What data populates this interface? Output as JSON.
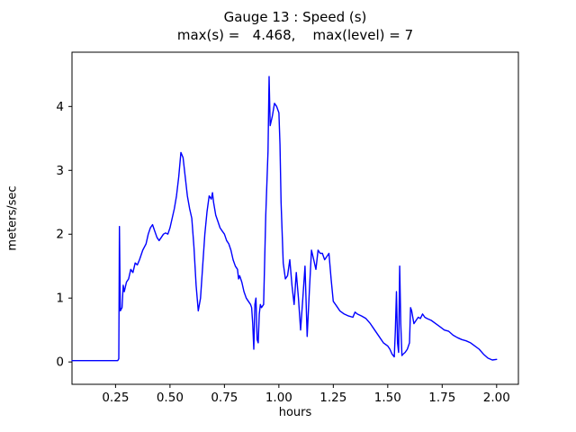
{
  "chart_data": {
    "type": "line",
    "title": "Gauge 13 : Speed (s)",
    "subtitle": "max(s) =   4.468,    max(level) = 7",
    "xlabel": "hours",
    "ylabel": "meters/sec",
    "max_s": 4.468,
    "max_level": 7,
    "line_color": "#0000ff",
    "axis_color": "#000000",
    "xlim": [
      0.05,
      2.1
    ],
    "ylim": [
      -0.35,
      4.85
    ],
    "xtick_values": [
      0.25,
      0.5,
      0.75,
      1.0,
      1.25,
      1.5,
      1.75,
      2.0
    ],
    "xtick_labels": [
      "0.25",
      "0.50",
      "0.75",
      "1.00",
      "1.25",
      "1.50",
      "1.75",
      "2.00"
    ],
    "ytick_values": [
      0,
      1,
      2,
      3,
      4
    ],
    "ytick_labels": [
      "0",
      "1",
      "2",
      "3",
      "4"
    ],
    "grid": false,
    "legend": null,
    "series": [
      {
        "name": "Speed (s)",
        "points": [
          [
            0.05,
            0.02
          ],
          [
            0.1,
            0.02
          ],
          [
            0.15,
            0.02
          ],
          [
            0.2,
            0.02
          ],
          [
            0.26,
            0.02
          ],
          [
            0.265,
            0.05
          ],
          [
            0.268,
            2.12
          ],
          [
            0.272,
            0.8
          ],
          [
            0.28,
            0.85
          ],
          [
            0.285,
            1.2
          ],
          [
            0.29,
            1.1
          ],
          [
            0.3,
            1.25
          ],
          [
            0.31,
            1.3
          ],
          [
            0.32,
            1.45
          ],
          [
            0.33,
            1.4
          ],
          [
            0.34,
            1.55
          ],
          [
            0.35,
            1.52
          ],
          [
            0.36,
            1.6
          ],
          [
            0.375,
            1.75
          ],
          [
            0.39,
            1.85
          ],
          [
            0.4,
            2.0
          ],
          [
            0.41,
            2.1
          ],
          [
            0.42,
            2.15
          ],
          [
            0.43,
            2.05
          ],
          [
            0.44,
            1.95
          ],
          [
            0.45,
            1.9
          ],
          [
            0.46,
            1.95
          ],
          [
            0.47,
            2.0
          ],
          [
            0.48,
            2.02
          ],
          [
            0.49,
            2.0
          ],
          [
            0.5,
            2.1
          ],
          [
            0.51,
            2.25
          ],
          [
            0.52,
            2.4
          ],
          [
            0.53,
            2.6
          ],
          [
            0.54,
            2.9
          ],
          [
            0.55,
            3.28
          ],
          [
            0.56,
            3.2
          ],
          [
            0.57,
            2.9
          ],
          [
            0.58,
            2.6
          ],
          [
            0.59,
            2.4
          ],
          [
            0.6,
            2.25
          ],
          [
            0.61,
            1.8
          ],
          [
            0.62,
            1.2
          ],
          [
            0.63,
            0.8
          ],
          [
            0.64,
            1.0
          ],
          [
            0.65,
            1.5
          ],
          [
            0.66,
            2.0
          ],
          [
            0.67,
            2.35
          ],
          [
            0.68,
            2.6
          ],
          [
            0.69,
            2.55
          ],
          [
            0.695,
            2.65
          ],
          [
            0.7,
            2.5
          ],
          [
            0.71,
            2.3
          ],
          [
            0.72,
            2.2
          ],
          [
            0.73,
            2.1
          ],
          [
            0.74,
            2.05
          ],
          [
            0.75,
            2.0
          ],
          [
            0.76,
            1.9
          ],
          [
            0.77,
            1.85
          ],
          [
            0.78,
            1.75
          ],
          [
            0.79,
            1.6
          ],
          [
            0.8,
            1.5
          ],
          [
            0.81,
            1.45
          ],
          [
            0.815,
            1.3
          ],
          [
            0.82,
            1.35
          ],
          [
            0.83,
            1.25
          ],
          [
            0.84,
            1.1
          ],
          [
            0.85,
            1.0
          ],
          [
            0.86,
            0.95
          ],
          [
            0.87,
            0.9
          ],
          [
            0.875,
            0.85
          ],
          [
            0.88,
            0.6
          ],
          [
            0.885,
            0.2
          ],
          [
            0.89,
            0.9
          ],
          [
            0.895,
            1.0
          ],
          [
            0.9,
            0.35
          ],
          [
            0.905,
            0.3
          ],
          [
            0.91,
            0.75
          ],
          [
            0.915,
            0.9
          ],
          [
            0.92,
            0.85
          ],
          [
            0.93,
            0.9
          ],
          [
            0.94,
            2.3
          ],
          [
            0.95,
            3.3
          ],
          [
            0.955,
            4.468
          ],
          [
            0.96,
            3.7
          ],
          [
            0.97,
            3.85
          ],
          [
            0.98,
            4.05
          ],
          [
            0.99,
            4.0
          ],
          [
            1.0,
            3.9
          ],
          [
            1.005,
            3.4
          ],
          [
            1.01,
            2.5
          ],
          [
            1.02,
            1.55
          ],
          [
            1.03,
            1.3
          ],
          [
            1.04,
            1.35
          ],
          [
            1.05,
            1.6
          ],
          [
            1.06,
            1.2
          ],
          [
            1.07,
            0.9
          ],
          [
            1.08,
            1.4
          ],
          [
            1.09,
            1.0
          ],
          [
            1.1,
            0.5
          ],
          [
            1.11,
            1.0
          ],
          [
            1.12,
            1.5
          ],
          [
            1.13,
            0.4
          ],
          [
            1.14,
            1.1
          ],
          [
            1.15,
            1.75
          ],
          [
            1.16,
            1.6
          ],
          [
            1.17,
            1.45
          ],
          [
            1.18,
            1.75
          ],
          [
            1.19,
            1.7
          ],
          [
            1.2,
            1.7
          ],
          [
            1.21,
            1.6
          ],
          [
            1.22,
            1.65
          ],
          [
            1.23,
            1.7
          ],
          [
            1.24,
            1.3
          ],
          [
            1.25,
            0.95
          ],
          [
            1.26,
            0.9
          ],
          [
            1.27,
            0.85
          ],
          [
            1.28,
            0.8
          ],
          [
            1.3,
            0.75
          ],
          [
            1.32,
            0.72
          ],
          [
            1.34,
            0.7
          ],
          [
            1.35,
            0.78
          ],
          [
            1.36,
            0.75
          ],
          [
            1.38,
            0.72
          ],
          [
            1.4,
            0.68
          ],
          [
            1.42,
            0.6
          ],
          [
            1.44,
            0.5
          ],
          [
            1.46,
            0.4
          ],
          [
            1.48,
            0.3
          ],
          [
            1.5,
            0.25
          ],
          [
            1.51,
            0.2
          ],
          [
            1.52,
            0.12
          ],
          [
            1.53,
            0.08
          ],
          [
            1.535,
            0.5
          ],
          [
            1.54,
            1.1
          ],
          [
            1.545,
            0.3
          ],
          [
            1.55,
            0.15
          ],
          [
            1.555,
            1.5
          ],
          [
            1.56,
            0.6
          ],
          [
            1.565,
            0.1
          ],
          [
            1.57,
            0.12
          ],
          [
            1.58,
            0.15
          ],
          [
            1.59,
            0.2
          ],
          [
            1.6,
            0.3
          ],
          [
            1.605,
            0.85
          ],
          [
            1.61,
            0.8
          ],
          [
            1.62,
            0.6
          ],
          [
            1.63,
            0.65
          ],
          [
            1.64,
            0.7
          ],
          [
            1.65,
            0.68
          ],
          [
            1.66,
            0.75
          ],
          [
            1.67,
            0.7
          ],
          [
            1.68,
            0.68
          ],
          [
            1.7,
            0.65
          ],
          [
            1.72,
            0.6
          ],
          [
            1.74,
            0.55
          ],
          [
            1.76,
            0.5
          ],
          [
            1.78,
            0.48
          ],
          [
            1.8,
            0.42
          ],
          [
            1.82,
            0.38
          ],
          [
            1.84,
            0.35
          ],
          [
            1.86,
            0.33
          ],
          [
            1.88,
            0.3
          ],
          [
            1.9,
            0.25
          ],
          [
            1.92,
            0.2
          ],
          [
            1.94,
            0.12
          ],
          [
            1.96,
            0.06
          ],
          [
            1.98,
            0.03
          ],
          [
            2.0,
            0.04
          ]
        ]
      }
    ]
  }
}
